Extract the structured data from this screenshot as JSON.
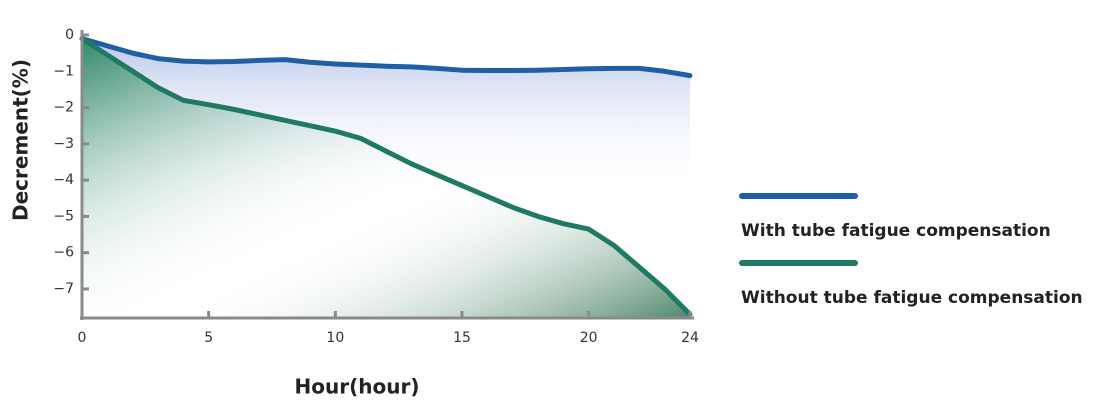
{
  "chart_data": {
    "type": "line",
    "x_label": "Hour(hour)",
    "y_label": "Decrement(%)",
    "x": [
      0,
      1,
      2,
      3,
      4,
      5,
      6,
      7,
      8,
      9,
      10,
      11,
      12,
      13,
      14,
      15,
      16,
      17,
      18,
      19,
      20,
      21,
      22,
      23,
      24
    ],
    "series": [
      {
        "name": "With tube fatigue compensation",
        "color": "#1f5fa8",
        "values": [
          -0.1,
          -0.3,
          -0.5,
          -0.65,
          -0.72,
          -0.74,
          -0.73,
          -0.7,
          -0.68,
          -0.75,
          -0.8,
          -0.83,
          -0.86,
          -0.88,
          -0.92,
          -0.97,
          -0.98,
          -0.98,
          -0.97,
          -0.95,
          -0.93,
          -0.92,
          -0.92,
          -1.0,
          -1.12
        ]
      },
      {
        "name": "Without tube fatigue compensation",
        "color": "#1e7a62",
        "values": [
          -0.1,
          -0.55,
          -1.0,
          -1.45,
          -1.8,
          -1.92,
          -2.05,
          -2.2,
          -2.35,
          -2.5,
          -2.65,
          -2.85,
          -3.2,
          -3.55,
          -3.85,
          -4.15,
          -4.45,
          -4.75,
          -5.0,
          -5.2,
          -5.35,
          -5.8,
          -6.4,
          -7.0,
          -7.7
        ]
      }
    ],
    "xlim": [
      0,
      24
    ],
    "xticks": [
      0,
      5,
      10,
      15,
      20,
      24
    ],
    "ylim": [
      -7.8,
      0
    ],
    "yticks": [
      0,
      {
        "value": -1,
        "label": "−1"
      },
      {
        "value": -2,
        "label": "−2"
      },
      {
        "value": -3,
        "label": "−3"
      },
      {
        "value": -4,
        "label": "−4"
      },
      {
        "value": -5,
        "label": "−5"
      },
      {
        "value": -6,
        "label": "−6"
      },
      {
        "value": -7,
        "label": "−7"
      }
    ]
  }
}
